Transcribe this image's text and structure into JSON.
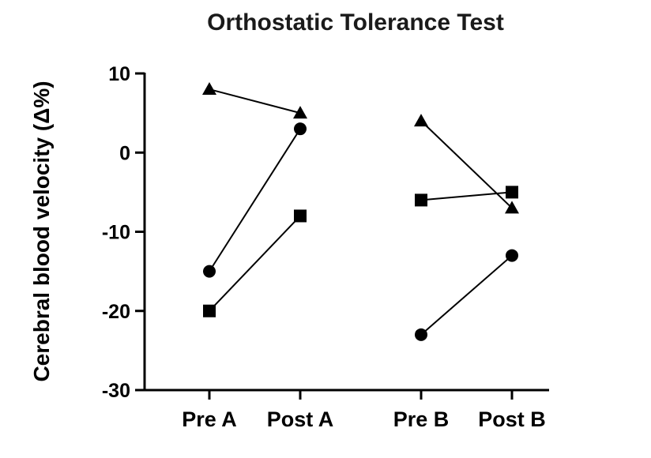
{
  "chart_data": {
    "type": "line",
    "title": "Orthostatic Tolerance Test",
    "ylabel": "Cerebral blood velocity (Δ%)",
    "xlabel": "",
    "ylim": [
      -30,
      10
    ],
    "yticks": [
      10,
      0,
      -10,
      -20,
      -30
    ],
    "categories": [
      "Pre A",
      "Post A",
      "Pre B",
      "Post B"
    ],
    "grid": false,
    "legend": "none",
    "pairs": [
      [
        0,
        1
      ],
      [
        2,
        3
      ]
    ],
    "series": [
      {
        "marker": "triangle",
        "values": [
          8,
          5,
          4,
          -7
        ]
      },
      {
        "marker": "circle",
        "values": [
          -15,
          3,
          -23,
          -13
        ]
      },
      {
        "marker": "square",
        "values": [
          -20,
          -8,
          -6,
          -5
        ]
      }
    ]
  }
}
